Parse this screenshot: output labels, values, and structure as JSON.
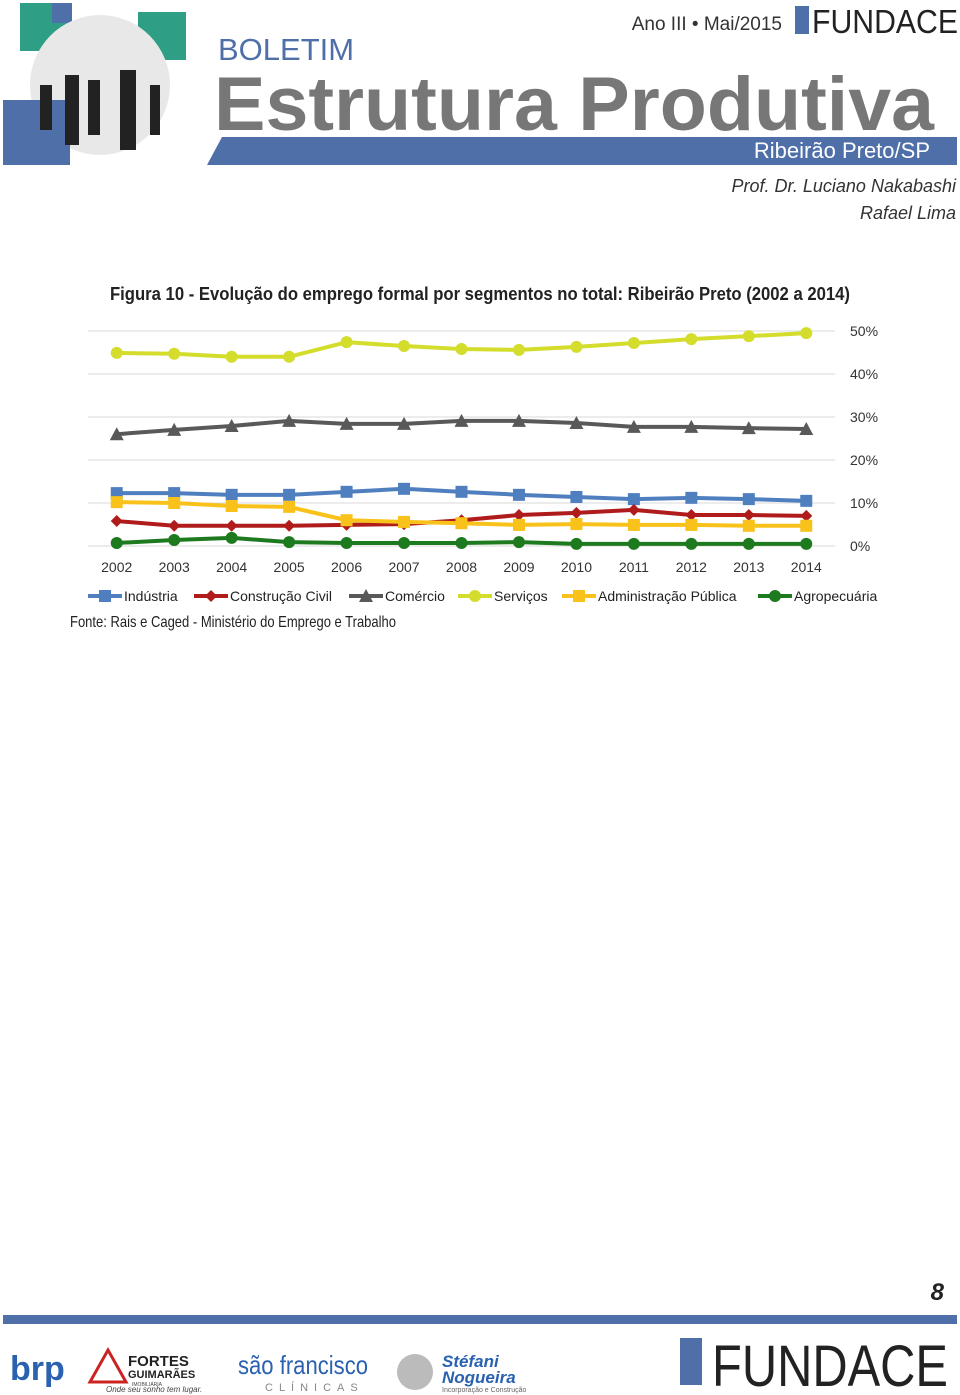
{
  "header": {
    "edition": "Ano III • Mai/2015",
    "logo": "FUNDACE",
    "kicker": "BOLETIM",
    "title": "Estrutura Produtiva",
    "place": "Ribeirão Preto/SP",
    "authors": [
      "Prof. Dr. Luciano Nakabashi",
      "Rafael Lima"
    ]
  },
  "chart_data": {
    "type": "line",
    "title": "Figura 10 - Evolução do emprego formal por segmentos no total: Ribeirão Preto (2002 a 2014)",
    "categories": [
      "2002",
      "2003",
      "2004",
      "2005",
      "2006",
      "2007",
      "2008",
      "2009",
      "2010",
      "2011",
      "2012",
      "2013",
      "2014"
    ],
    "ylim": [
      0,
      50
    ],
    "yticks": [
      {
        "value": 0,
        "label": "0%"
      },
      {
        "value": 10,
        "label": "10%"
      },
      {
        "value": 20,
        "label": "20%"
      },
      {
        "value": 30,
        "label": "30%"
      },
      {
        "value": 40,
        "label": "40%"
      },
      {
        "value": 50,
        "label": "50%"
      }
    ],
    "grid": true,
    "y_axis_side": "right",
    "legend": "bottom",
    "series": [
      {
        "name": "Indústria",
        "color": "#4f7fbf",
        "marker": "square",
        "values": [
          12.3,
          12.3,
          11.9,
          11.9,
          12.6,
          13.3,
          12.6,
          11.9,
          11.4,
          10.9,
          11.2,
          10.9,
          10.5
        ]
      },
      {
        "name": "Construção Civil",
        "color": "#b01c1c",
        "marker": "diamond",
        "values": [
          5.8,
          4.7,
          4.7,
          4.7,
          4.9,
          5.1,
          6.0,
          7.2,
          7.7,
          8.4,
          7.2,
          7.2,
          7.0
        ]
      },
      {
        "name": "Comércio",
        "color": "#595959",
        "marker": "triangle",
        "values": [
          26.0,
          27.0,
          27.9,
          29.1,
          28.4,
          28.4,
          29.1,
          29.1,
          28.6,
          27.7,
          27.7,
          27.4,
          27.2
        ]
      },
      {
        "name": "Serviços",
        "color": "#d4dc2c",
        "marker": "circle",
        "values": [
          44.9,
          44.7,
          44.0,
          44.0,
          47.4,
          46.5,
          45.8,
          45.6,
          46.3,
          47.2,
          48.1,
          48.8,
          49.5
        ]
      },
      {
        "name": "Administração Pública",
        "color": "#f9c21a",
        "marker": "square",
        "values": [
          10.2,
          10.0,
          9.3,
          9.1,
          6.0,
          5.6,
          5.3,
          4.9,
          5.1,
          4.9,
          4.9,
          4.7,
          4.7
        ]
      },
      {
        "name": "Agropecuária",
        "color": "#1e7a1e",
        "marker": "circle",
        "values": [
          0.7,
          1.4,
          1.9,
          0.9,
          0.7,
          0.7,
          0.7,
          0.9,
          0.5,
          0.5,
          0.5,
          0.5,
          0.5
        ]
      }
    ]
  },
  "source": "Fonte: Rais e Caged - Ministério do Emprego e Trabalho",
  "page_number": "8",
  "footer": {
    "sponsors": [
      "brp",
      "FORTES",
      "GUIMARÃES",
      "IMOBILIÁRIA",
      "Onde seu sonho tem lugar.",
      "são francisco",
      "CLÍNICAS",
      "Stéfani",
      "Nogueira",
      "Incorporação e Construção"
    ],
    "logo": "FUNDACE"
  }
}
